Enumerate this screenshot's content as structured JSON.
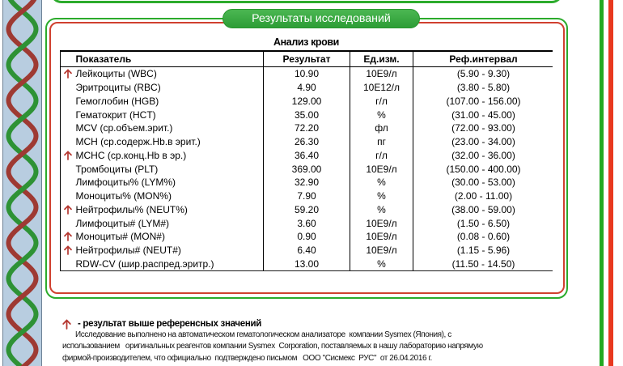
{
  "header": {
    "section_title": "Результаты исследований"
  },
  "report": {
    "table_title": "Анализ крови",
    "columns": [
      "Показатель",
      "Результат",
      "Ед.изм.",
      "Реф.интервал"
    ],
    "rows": [
      {
        "flag": "high",
        "name": "Лейкоциты (WBC)",
        "result": "10.90",
        "unit": "10Е9/л",
        "ref": "(5.90 - 9.30)"
      },
      {
        "flag": "",
        "name": "Эритроциты (RBC)",
        "result": "4.90",
        "unit": "10Е12/л",
        "ref": "(3.80 - 5.80)"
      },
      {
        "flag": "",
        "name": "Гемоглобин (HGB)",
        "result": "129.00",
        "unit": "г/л",
        "ref": "(107.00 - 156.00)"
      },
      {
        "flag": "",
        "name": "Гематокрит (HCT)",
        "result": "35.00",
        "unit": "%",
        "ref": "(31.00 - 45.00)"
      },
      {
        "flag": "",
        "name": "MCV (ср.объем.эрит.)",
        "result": "72.20",
        "unit": "фл",
        "ref": "(72.00 - 93.00)"
      },
      {
        "flag": "",
        "name": "MCH (ср.содерж.Hb.в эрит.)",
        "result": "26.30",
        "unit": "пг",
        "ref": "(23.00 - 34.00)"
      },
      {
        "flag": "high",
        "name": "MCHC (ср.конц.Hb в эр.)",
        "result": "36.40",
        "unit": "г/л",
        "ref": "(32.00 - 36.00)"
      },
      {
        "flag": "",
        "name": "Тромбоциты (PLT)",
        "result": "369.00",
        "unit": "10Е9/л",
        "ref": "(150.00 - 400.00)"
      },
      {
        "flag": "",
        "name": "Лимфоциты% (LYM%)",
        "result": "32.90",
        "unit": "%",
        "ref": "(30.00 - 53.00)"
      },
      {
        "flag": "",
        "name": "Моноциты% (MON%)",
        "result": "7.90",
        "unit": "%",
        "ref": "(2.00 - 11.00)"
      },
      {
        "flag": "high",
        "name": "Нейтрофилы% (NEUT%)",
        "result": "59.20",
        "unit": "%",
        "ref": "(38.00 - 59.00)"
      },
      {
        "flag": "",
        "name": "Лимфоциты# (LYM#)",
        "result": "3.60",
        "unit": "10Е9/л",
        "ref": "(1.50 - 6.50)"
      },
      {
        "flag": "high",
        "name": "Моноциты# (MON#)",
        "result": "0.90",
        "unit": "10Е9/л",
        "ref": "(0.08 - 0.60)"
      },
      {
        "flag": "high",
        "name": "Нейтрофилы# (NEUT#)",
        "result": "6.40",
        "unit": "10Е9/л",
        "ref": "(1.15 - 5.96)"
      },
      {
        "flag": "",
        "name": "RDW-CV (шир.распред.эритр.)",
        "result": "13.00",
        "unit": "%",
        "ref": "(11.50 - 14.50)"
      }
    ],
    "flag_icon": "↑"
  },
  "legend": {
    "icon": "↑",
    "text": "- результат выше референсных значений"
  },
  "footnote": {
    "lines": [
      "Исследование выполнено на автоматическом гематологическом анализаторе  компании Sysmex (Япония), с",
      "использованием   оригинальных реагентов компании Sysmex  Corporation, поставляемых в нашу лабораторию напрямую",
      "фирмой-производителем, что официально  подтверждено письмом   ООО \"Сисмекс  РУС\"  от 26.04.2016 г."
    ]
  },
  "colors": {
    "box_green": "#2cab2c",
    "box_red": "#d0402f",
    "pill_green": "#3aa944",
    "stripe_green": "#21a821",
    "stripe_red": "#e8381f",
    "band_blue": "#b8cde0",
    "helix_green": "#2e9235",
    "helix_red": "#9e3a33",
    "flag_red": "#b5362f",
    "text": "#000000"
  }
}
